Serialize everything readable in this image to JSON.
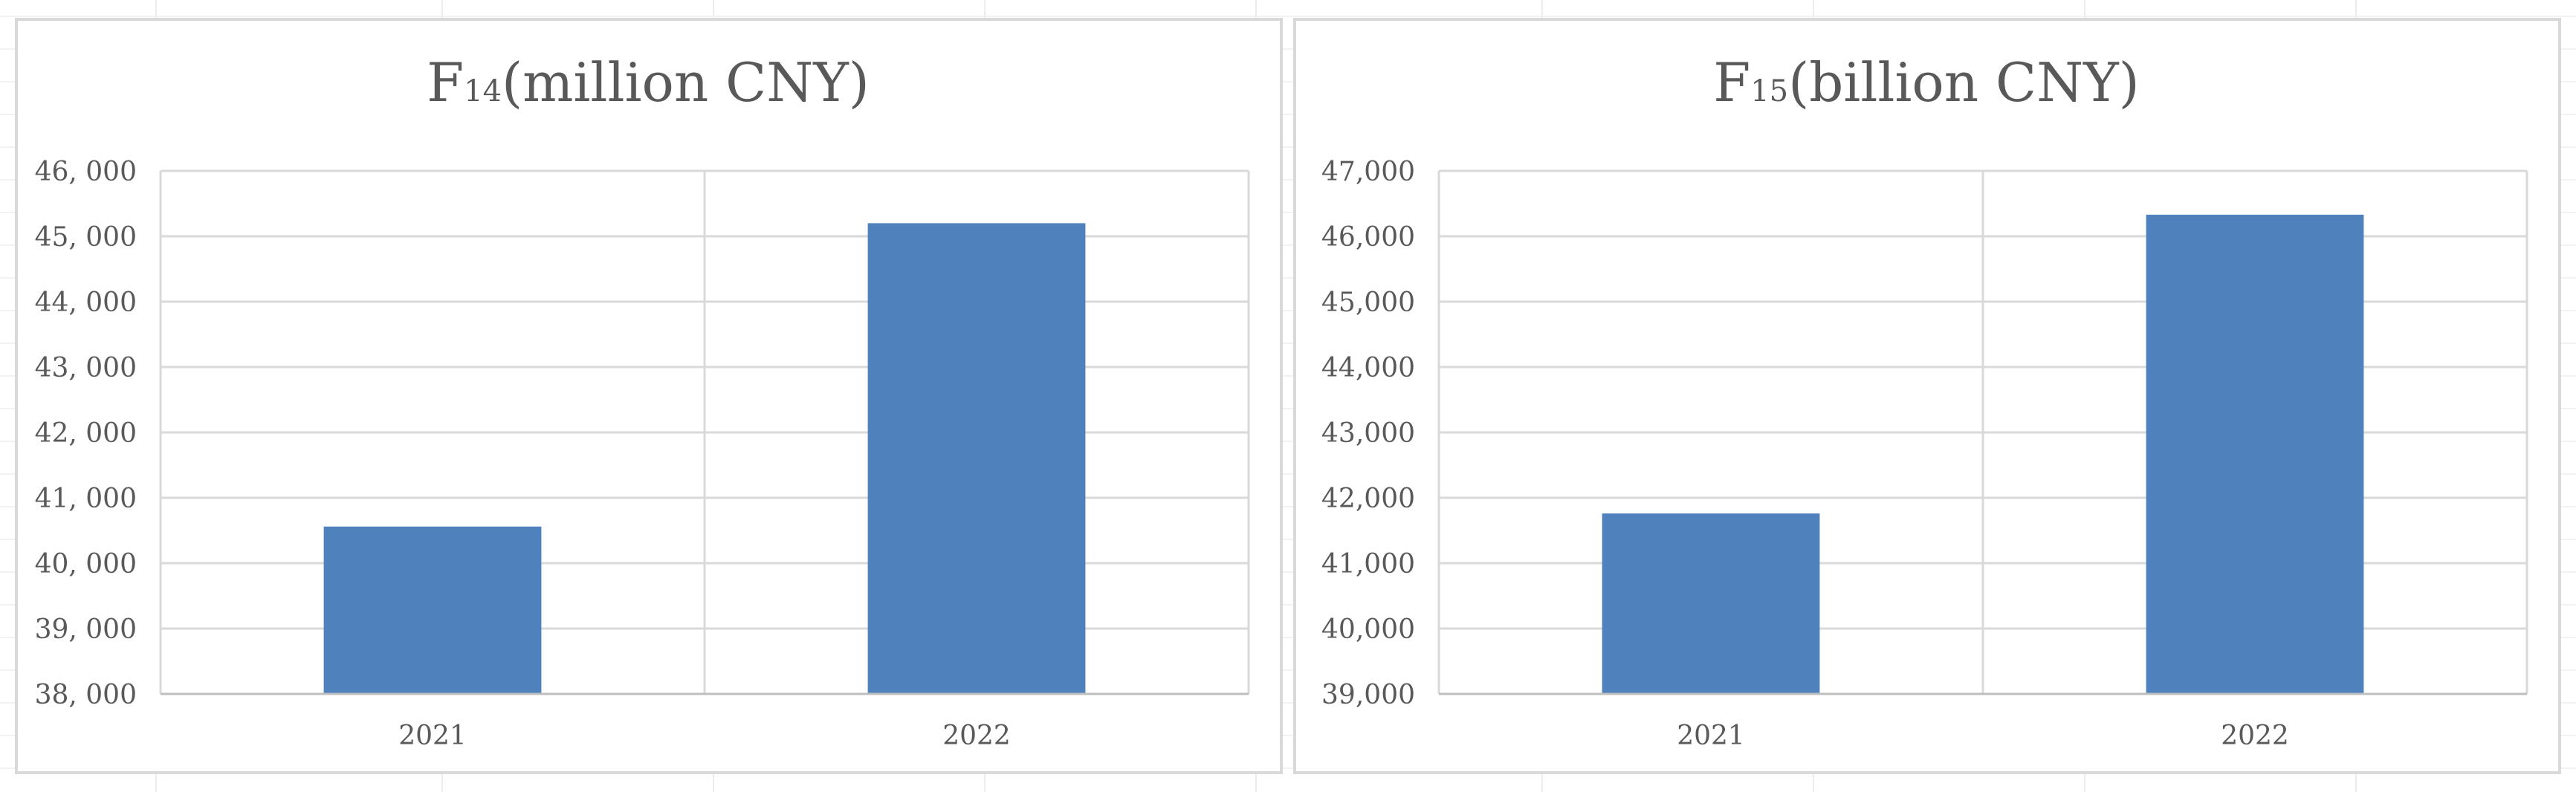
{
  "colors": {
    "bar": "#4f81bd",
    "gridline": "#d9d9d9",
    "panel_border": "#d9d9d9",
    "axis_text": "#595959",
    "title_text": "#595959"
  },
  "chart_data": [
    {
      "type": "bar",
      "title_main": "F",
      "title_sub": "14",
      "title_rest": "(million CNY)",
      "categories": [
        "2021",
        "2022"
      ],
      "values": [
        40560,
        45200
      ],
      "ylim": [
        38000,
        46000
      ],
      "y_ticks": [
        "38, 000",
        "39, 000",
        "40, 000",
        "41, 000",
        "42, 000",
        "43, 000",
        "44, 000",
        "45, 000",
        "46, 000"
      ],
      "grid": true,
      "legend": "none"
    },
    {
      "type": "bar",
      "title_main": "F",
      "title_sub": "15",
      "title_rest": "(billion CNY)",
      "categories": [
        "2021",
        "2022"
      ],
      "values": [
        41760,
        46330
      ],
      "ylim": [
        39000,
        47000
      ],
      "y_ticks": [
        "39,000",
        "40,000",
        "41,000",
        "42,000",
        "43,000",
        "44,000",
        "45,000",
        "46,000",
        "47,000"
      ],
      "grid": true,
      "legend": "none"
    }
  ]
}
